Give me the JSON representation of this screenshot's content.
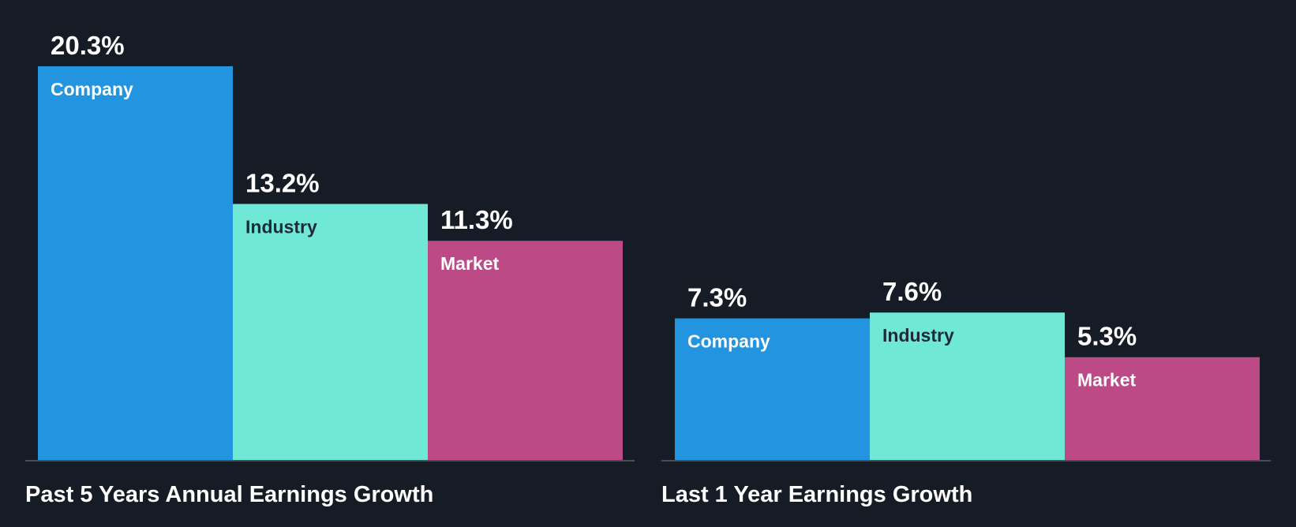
{
  "chart_data": [
    {
      "type": "bar",
      "title": "Past 5 Years Annual Earnings Growth",
      "categories": [
        "Company",
        "Industry",
        "Market"
      ],
      "values": [
        20.3,
        13.2,
        11.3
      ],
      "value_labels": [
        "20.3%",
        "13.2%",
        "11.3%"
      ],
      "unit": "%",
      "ylim": [
        0,
        20.3
      ],
      "grid": false,
      "legend": "none"
    },
    {
      "type": "bar",
      "title": "Last 1 Year Earnings Growth",
      "categories": [
        "Company",
        "Industry",
        "Market"
      ],
      "values": [
        7.3,
        7.6,
        5.3
      ],
      "value_labels": [
        "7.3%",
        "7.6%",
        "5.3%"
      ],
      "unit": "%",
      "ylim": [
        0,
        20.3
      ],
      "grid": false,
      "legend": "none"
    }
  ],
  "colors": {
    "background": "#161c25",
    "company": "#2394df",
    "industry": "#6fe8d8",
    "market": "#bb4a86",
    "label_on_light": "#1f2a37",
    "label_on_dark": "#ffffff"
  }
}
